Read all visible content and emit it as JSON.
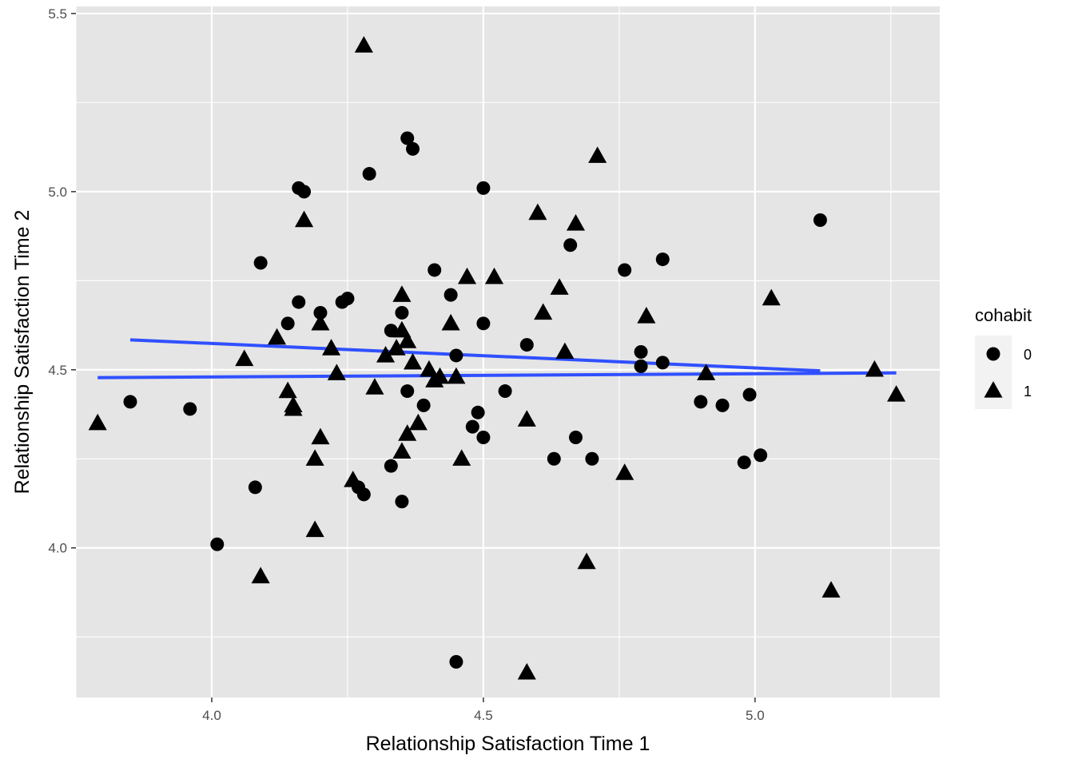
{
  "chart_data": {
    "type": "scatter",
    "xlabel": "Relationship Satisfaction Time 1",
    "ylabel": "Relationship Satisfaction Time 2",
    "xlim": [
      3.75,
      5.34
    ],
    "ylim": [
      3.58,
      5.52
    ],
    "x_ticks": [
      {
        "value": 4.0,
        "label": "4.0"
      },
      {
        "value": 4.5,
        "label": "4.5"
      },
      {
        "value": 5.0,
        "label": "5.0"
      }
    ],
    "y_ticks": [
      {
        "value": 4.0,
        "label": "4.0"
      },
      {
        "value": 4.5,
        "label": "4.5"
      },
      {
        "value": 5.0,
        "label": "5.0"
      },
      {
        "value": 5.5,
        "label": "5.5"
      }
    ],
    "grid": true,
    "legend": {
      "title": "cohabit",
      "placement": "right",
      "entries": [
        {
          "label": "0",
          "shape": "circle"
        },
        {
          "label": "1",
          "shape": "triangle"
        }
      ]
    },
    "colors": {
      "panel": "#e5e5e5",
      "grid": "#ffffff",
      "points": "#000000",
      "fit_line": "#3050ff",
      "legend_key": "#f2f2f2"
    },
    "series": [
      {
        "name": "0",
        "shape": "circle",
        "points": [
          [
            3.85,
            4.41
          ],
          [
            3.96,
            4.39
          ],
          [
            4.01,
            4.01
          ],
          [
            4.08,
            4.17
          ],
          [
            4.09,
            4.8
          ],
          [
            4.14,
            4.63
          ],
          [
            4.16,
            5.01
          ],
          [
            4.17,
            5.0
          ],
          [
            4.16,
            4.69
          ],
          [
            4.2,
            4.66
          ],
          [
            4.24,
            4.69
          ],
          [
            4.25,
            4.7
          ],
          [
            4.27,
            4.17
          ],
          [
            4.28,
            4.15
          ],
          [
            4.29,
            5.05
          ],
          [
            4.33,
            4.23
          ],
          [
            4.33,
            4.61
          ],
          [
            4.35,
            4.66
          ],
          [
            4.35,
            4.13
          ],
          [
            4.36,
            5.15
          ],
          [
            4.37,
            5.12
          ],
          [
            4.36,
            4.44
          ],
          [
            4.39,
            4.4
          ],
          [
            4.41,
            4.78
          ],
          [
            4.44,
            4.71
          ],
          [
            4.45,
            4.54
          ],
          [
            4.45,
            3.68
          ],
          [
            4.48,
            4.34
          ],
          [
            4.49,
            4.38
          ],
          [
            4.5,
            4.31
          ],
          [
            4.5,
            4.63
          ],
          [
            4.5,
            5.01
          ],
          [
            4.54,
            4.44
          ],
          [
            4.58,
            4.57
          ],
          [
            4.63,
            4.25
          ],
          [
            4.66,
            4.85
          ],
          [
            4.67,
            4.31
          ],
          [
            4.7,
            4.25
          ],
          [
            4.76,
            4.78
          ],
          [
            4.79,
            4.51
          ],
          [
            4.79,
            4.55
          ],
          [
            4.83,
            4.52
          ],
          [
            4.83,
            4.81
          ],
          [
            4.9,
            4.41
          ],
          [
            4.94,
            4.4
          ],
          [
            4.98,
            4.24
          ],
          [
            4.99,
            4.43
          ],
          [
            5.01,
            4.26
          ],
          [
            5.12,
            4.92
          ]
        ]
      },
      {
        "name": "1",
        "shape": "triangle",
        "points": [
          [
            3.79,
            4.35
          ],
          [
            4.06,
            4.53
          ],
          [
            4.09,
            3.92
          ],
          [
            4.12,
            4.59
          ],
          [
            4.14,
            4.44
          ],
          [
            4.15,
            4.4
          ],
          [
            4.15,
            4.39
          ],
          [
            4.17,
            4.92
          ],
          [
            4.19,
            4.05
          ],
          [
            4.19,
            4.25
          ],
          [
            4.2,
            4.31
          ],
          [
            4.2,
            4.63
          ],
          [
            4.22,
            4.56
          ],
          [
            4.23,
            4.49
          ],
          [
            4.26,
            4.19
          ],
          [
            4.28,
            5.41
          ],
          [
            4.3,
            4.45
          ],
          [
            4.32,
            4.54
          ],
          [
            4.34,
            4.56
          ],
          [
            4.35,
            4.71
          ],
          [
            4.35,
            4.61
          ],
          [
            4.35,
            4.27
          ],
          [
            4.36,
            4.58
          ],
          [
            4.36,
            4.32
          ],
          [
            4.37,
            4.52
          ],
          [
            4.38,
            4.35
          ],
          [
            4.4,
            4.5
          ],
          [
            4.41,
            4.47
          ],
          [
            4.42,
            4.48
          ],
          [
            4.44,
            4.63
          ],
          [
            4.45,
            4.48
          ],
          [
            4.46,
            4.25
          ],
          [
            4.47,
            4.76
          ],
          [
            4.52,
            4.76
          ],
          [
            4.58,
            4.36
          ],
          [
            4.58,
            3.65
          ],
          [
            4.6,
            4.94
          ],
          [
            4.61,
            4.66
          ],
          [
            4.64,
            4.73
          ],
          [
            4.65,
            4.55
          ],
          [
            4.67,
            4.91
          ],
          [
            4.69,
            3.96
          ],
          [
            4.71,
            5.1
          ],
          [
            4.76,
            4.21
          ],
          [
            4.8,
            4.65
          ],
          [
            4.91,
            4.49
          ],
          [
            5.03,
            4.7
          ],
          [
            5.14,
            3.88
          ],
          [
            5.22,
            4.5
          ],
          [
            5.26,
            4.43
          ]
        ]
      }
    ],
    "fit_lines": [
      {
        "series": "0",
        "x": [
          3.85,
          5.12
        ],
        "y": [
          4.584,
          4.497
        ]
      },
      {
        "series": "1",
        "x": [
          3.79,
          5.26
        ],
        "y": [
          4.478,
          4.491
        ]
      }
    ]
  }
}
